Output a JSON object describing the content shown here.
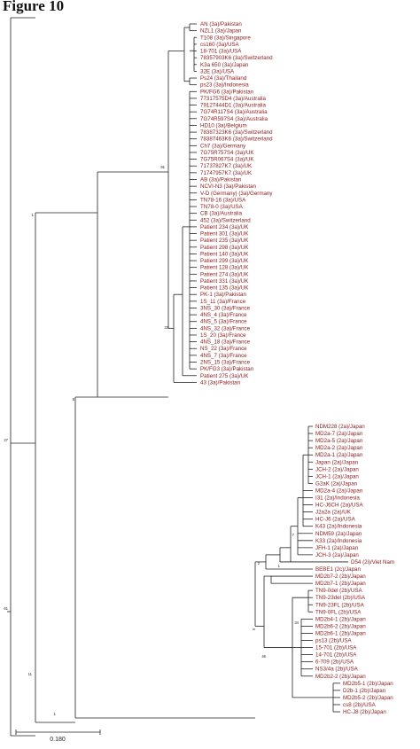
{
  "figure_title": "Figure 10",
  "scale_bar_label": "0.180",
  "colors": {
    "line": "#222222",
    "leaf_text": "#8b1a1a"
  },
  "bootstrap_labels": [
    "27",
    "1",
    "91",
    "33",
    "8",
    "61",
    "11",
    "7",
    "2",
    "1",
    "1",
    "34",
    "46"
  ],
  "leaves_3a": [
    "AN (3a)/Pakistan",
    "NZL1 (3a)/Japan",
    "T108 (3a)/Singapore",
    "cs160 (3a)/USA",
    "18-701 (3a)/USA",
    "78357903K6 (3a)/Switzerland",
    "K3a 650 (3a)/Japan",
    "32E (3a)/USA",
    "Ps24 (3a)/Thailand",
    "ps23 (3a)/Indonesia",
    "PK/FG6 (3a)/Pakistan",
    "77317575D4 (3a)/Australia",
    "79127444D1 (3a)/Australia",
    "7G74R117S4 (3a)/Australia",
    "7G74R597S4 (3a)/Australia",
    "HD10 (3a)/Belgium",
    "78387323K6 (3a)/Switzerland",
    "78387463K6 (3a)/Switzerland",
    "Ch7 (3a)/Germany",
    "7G75R757S4 (3a)/UK",
    "7G75R067S4 (3a)/UK",
    "71737827K7 (3a)/UK",
    "71747957K7 (3a)/UK",
    "AB (3a)/Pakistan",
    "NCVI-N3 (3a)/Pakistan",
    "V-D (Germany) (3a)/Germany",
    "TN78-16 (3a)/USA",
    "TN78-0 (3a)/USA",
    "CB (3a)/Australia",
    "452 (3a)/Switzerland",
    "Patient 234 (3a)/UK",
    "Patient 301 (3a)/UK",
    "Patient 235 (3a)/UK",
    "Patient 298 (3a)/UK",
    "Patient 140 (3a)/UK",
    "Patient 299 (3a)/UK",
    "Patient 128 (3a)/UK",
    "Patient 274 (3a)/UK",
    "Patient 331 (3a)/UK",
    "Patient 135 (3a)/UK",
    "PK-1 (3a)/Pakistan",
    "1S_11 (3a)/France",
    "3NS_30 (3a)/France",
    "4NS_4 (3a)/France",
    "4NS_5 (3a)/France",
    "4NS_32 (3a)/France",
    "1S_20 (3a)/France",
    "4NS_18 (3a)/France",
    "NS_22 (3a)/France",
    "4NS_7 (3a)/France",
    "2NS_15 (3a)/France",
    "PK/FG3 (3a)/Pakistan",
    "Patient 275 (3a)/UK",
    "43 (3a)/Pakistan"
  ],
  "leaves_2": [
    "NDM228 (2a)/Japan",
    "MD2a-7 (2a)/Japan",
    "MD2a-5 (2a)/Japan",
    "MD2a-2 (2a)/Japan",
    "MD2a-1 (2a)/Japan",
    "Japan (2a)/Japan",
    "JCH-2 (2a)/Japan",
    "JCH-1 (2a)/Japan",
    "G2aK (2a)/Japan",
    "MD2a-4 (2a)/Japan",
    "I31 (2a)/Indonesia",
    "HC-J6CH (2a)/USA",
    "J2a2a (2a)/UK",
    "HC-J6 (2a)/USA",
    "K43 (2a)/Indonesia",
    "NDM59 (2a)/Japan",
    "K33 (2a)/Indonesia",
    "JFH-1 (2a)/Japan",
    "JCH-3 (2a)/Japan",
    "D54 (2i)/Viet Nam",
    "BEBE1 (2c)/Japan",
    "MD2b7-2 (2b)/Japan",
    "MD2b7-1 (2b)/Japan",
    "TN9-0del (2b)/USA",
    "TN9-23del (2b)/USA",
    "TN9-23FL (2b)/USA",
    "TN9-0FL (2b)/USA",
    "MD2b4-1 (2b)/Japan",
    "MD2b6-2 (2b)/Japan",
    "MD2b6-1 (2b)/Japan",
    "ps13 (2b)/USA",
    "15-701 (2b)/USA",
    "14-701 (2b)/USA",
    "6-709 (2b)/USA",
    "NS3/4a (2b)/USA",
    "MD2b2-2 (2b)/Japan",
    "MD2b5-1 (2b)/Japan",
    "D2b-1 (2b)/Japan",
    "MD2b5-2 (2b)/Japan",
    "cs8 (2b)/USA",
    "HC-J8 (2b)/Japan"
  ]
}
